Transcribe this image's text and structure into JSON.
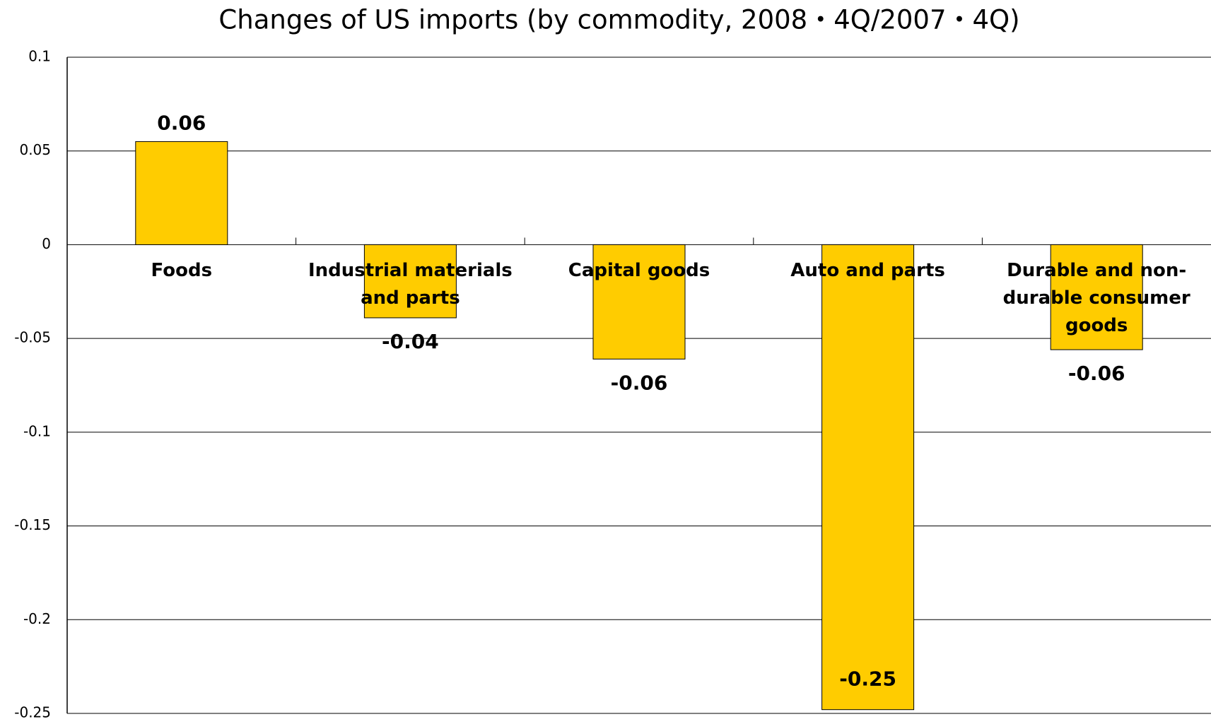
{
  "chart_data": {
    "type": "bar",
    "title": "Changes of US imports (by commodity, 2008・4Q/2007・4Q)",
    "categories": [
      "Foods",
      "Industrial materials and parts",
      "Capital goods",
      "Auto and parts",
      "Durable and non-durable consumer goods"
    ],
    "values": [
      0.055,
      -0.039,
      -0.061,
      -0.248,
      -0.056
    ],
    "value_labels": [
      "0.06",
      "-0.04",
      "-0.06",
      "-0.25",
      "-0.06"
    ],
    "color": "#ffcc00",
    "ylim": [
      -0.25,
      0.1
    ],
    "yticks": [
      -0.25,
      -0.2,
      -0.15,
      -0.1,
      -0.05,
      0,
      0.05,
      0.1
    ],
    "grid": true
  }
}
